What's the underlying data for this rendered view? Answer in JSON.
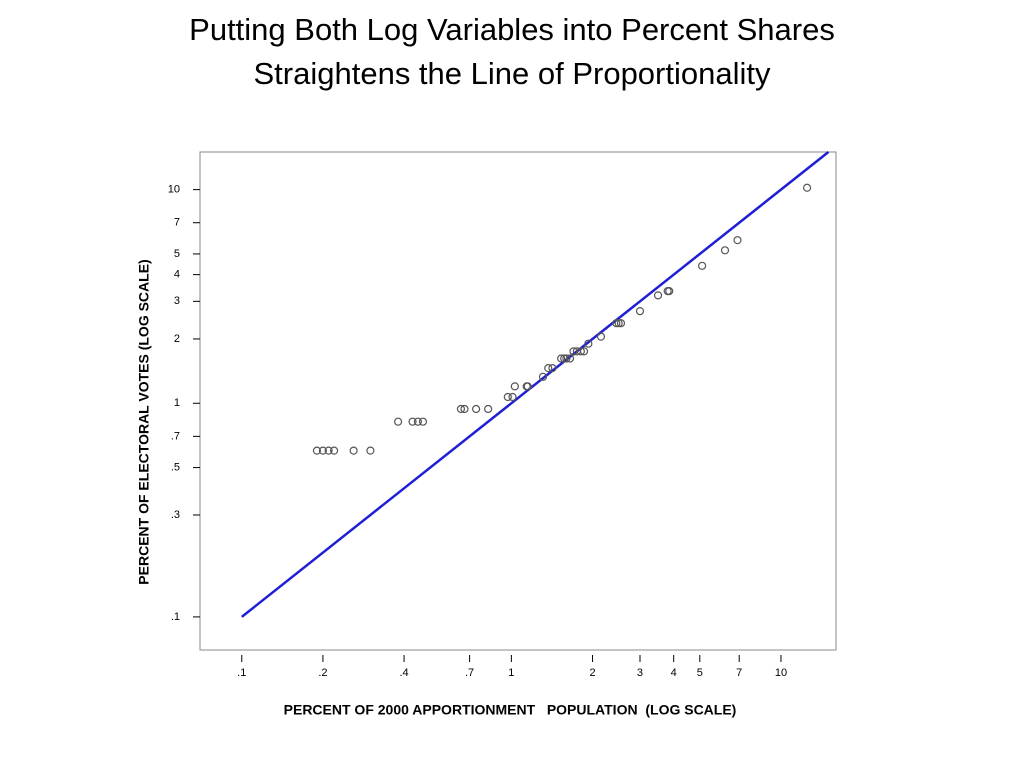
{
  "chart_data": {
    "type": "scatter",
    "title": [
      "Putting Both Log Variables into Percent Shares",
      "Straightens the Line of Proportionality"
    ],
    "x_label": "PERCENT OF 2000 APPORTIONMENT   POPULATION  (LOG SCALE)",
    "y_label": "PERCENT OF ELECTORAL VOTES (LOG SCALE)",
    "log_x": true,
    "log_y": true,
    "grid": false,
    "point_color": "#555555",
    "x": [
      12.5,
      6.9,
      6.2,
      5.1,
      3.8,
      3.85,
      3.5,
      3.0,
      2.55,
      2.5,
      2.45,
      2.15,
      1.93,
      1.86,
      1.81,
      1.75,
      1.7,
      1.65,
      1.6,
      1.57,
      1.53,
      1.42,
      1.37,
      1.31,
      1.15,
      1.14,
      1.03,
      1.01,
      0.97,
      0.82,
      0.74,
      0.67,
      0.65,
      0.47,
      0.45,
      0.43,
      0.38,
      0.3,
      0.26,
      0.22,
      0.21,
      0.2,
      0.19
    ],
    "values": [
      10.2,
      5.8,
      5.2,
      4.4,
      3.35,
      3.35,
      3.2,
      2.7,
      2.37,
      2.37,
      2.37,
      2.05,
      1.9,
      1.75,
      1.75,
      1.75,
      1.75,
      1.62,
      1.62,
      1.62,
      1.62,
      1.46,
      1.46,
      1.33,
      1.2,
      1.2,
      1.2,
      1.07,
      1.07,
      0.94,
      0.94,
      0.94,
      0.94,
      0.82,
      0.82,
      0.82,
      0.82,
      0.6,
      0.6,
      0.6,
      0.6,
      0.6,
      0.6
    ],
    "reference_line": {
      "color": "#1f1fd6",
      "x": [
        0.1,
        15
      ],
      "values": [
        0.1,
        15
      ]
    },
    "xlim": [
      0.07,
      16
    ],
    "ylim": [
      0.07,
      15
    ],
    "xticks": [
      {
        "value": 0.1,
        "label": ".1"
      },
      {
        "value": 0.2,
        "label": ".2"
      },
      {
        "value": 0.4,
        "label": ".4"
      },
      {
        "value": 0.7,
        "label": ".7"
      },
      1,
      2,
      3,
      4,
      5,
      7,
      10
    ],
    "yticks": [
      {
        "value": 0.1,
        "label": ".1"
      },
      {
        "value": 0.3,
        "label": ".3"
      },
      {
        "value": 0.5,
        "label": ".5"
      },
      {
        "value": 0.7,
        "label": ".7"
      },
      1,
      2,
      3,
      4,
      5,
      7,
      10
    ]
  }
}
